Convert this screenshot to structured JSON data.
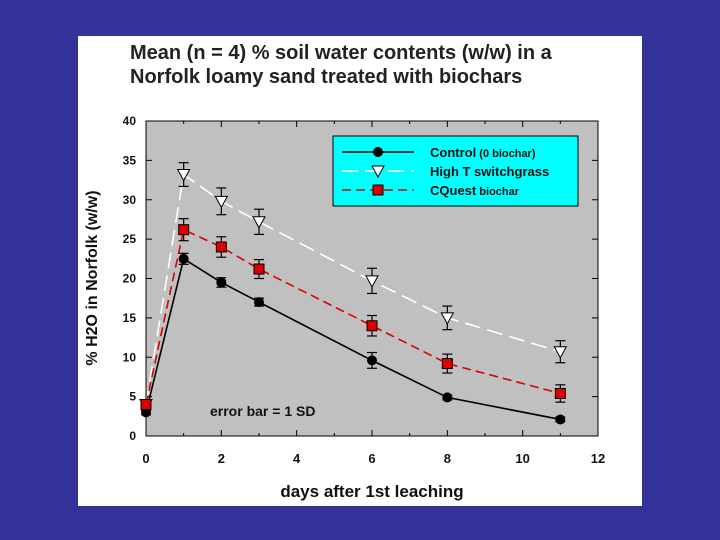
{
  "chart_data": {
    "type": "line",
    "title": "Mean (n = 4) % soil water contents (w/w) in a Norfolk loamy sand treated with biochars",
    "title_lines": [
      "Mean (n = 4) % soil water contents (w/w) in a",
      "Norfolk loamy sand treated with biochars"
    ],
    "xlabel": "days after 1st leaching",
    "ylabel": "% H2O in Norfolk (w/w)",
    "xlim": [
      0,
      12
    ],
    "ylim": [
      0,
      40
    ],
    "xticks": [
      0,
      2,
      4,
      6,
      8,
      10,
      12
    ],
    "yticks": [
      0,
      5,
      10,
      15,
      20,
      25,
      30,
      35,
      40
    ],
    "grid": false,
    "plot_background": "#c0c0c0",
    "legend_background": "#00ffff",
    "legend_position": "top-right",
    "annotation": "error bar = 1 SD",
    "series": [
      {
        "name": "Control (0 biochar)",
        "legend_main": "Control",
        "legend_sub": "(0 biochar)",
        "color": "#000000",
        "line_style": "solid",
        "marker": "circle",
        "x": [
          0,
          1,
          2,
          3,
          6,
          8,
          11
        ],
        "y": [
          3.0,
          22.5,
          19.5,
          17.0,
          9.6,
          4.9,
          2.1
        ],
        "sd": [
          0.3,
          0.7,
          0.6,
          0.5,
          1.0,
          0.3,
          0.3
        ]
      },
      {
        "name": "High T switchgrass",
        "legend_main": "High T switchgrass",
        "legend_sub": "",
        "color": "#ffffff",
        "line_style": "long-dash",
        "marker": "triangle-down",
        "x": [
          0,
          1,
          2,
          3,
          6,
          8,
          11
        ],
        "y": [
          4.0,
          33.2,
          29.8,
          27.2,
          19.7,
          15.0,
          10.7
        ],
        "sd": [
          0.4,
          1.5,
          1.7,
          1.6,
          1.6,
          1.5,
          1.4
        ]
      },
      {
        "name": "CQuest biochar",
        "legend_main": "CQuest",
        "legend_sub": "biochar",
        "color": "#dd0000",
        "line_style": "dash",
        "marker": "square",
        "x": [
          0,
          1,
          2,
          3,
          6,
          8,
          11
        ],
        "y": [
          4.0,
          26.2,
          24.0,
          21.2,
          14.0,
          9.2,
          5.4
        ],
        "sd": [
          0.4,
          1.4,
          1.3,
          1.2,
          1.3,
          1.2,
          1.1
        ]
      }
    ]
  }
}
